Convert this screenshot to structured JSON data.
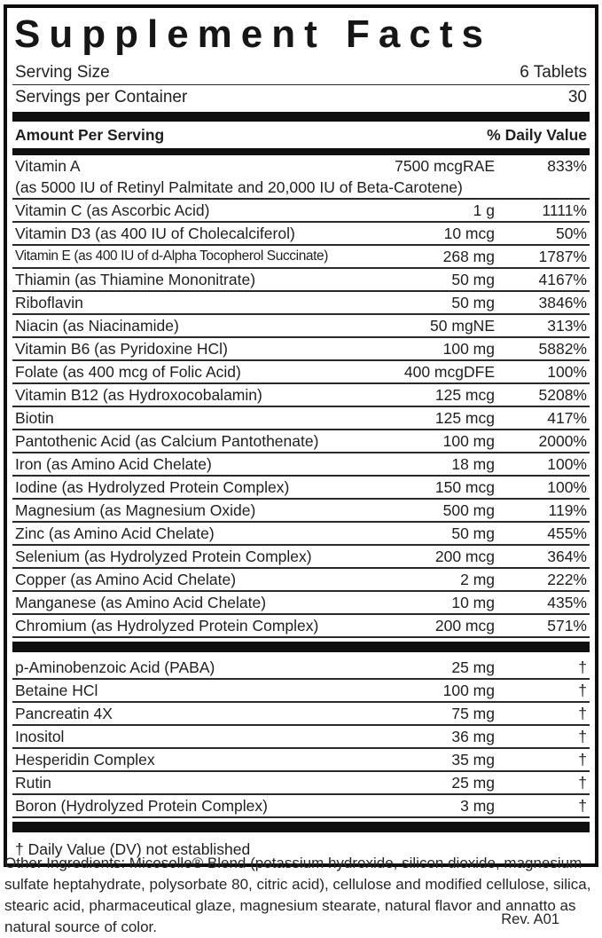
{
  "label": {
    "title": "Supplement Facts",
    "serving": {
      "size_label": "Serving Size",
      "size_value": "6 Tablets",
      "per_container_label": "Servings per Container",
      "per_container_value": "30"
    },
    "columns": {
      "amount_header": "Amount Per Serving",
      "dv_header": "% Daily Value"
    },
    "main_rows": [
      {
        "name": "Vitamin A",
        "amount": "7500 mcgRAE",
        "dv": "833%",
        "note": "(as 5000 IU of Retinyl Palmitate and 20,000 IU of Beta-Carotene)"
      },
      {
        "name": "Vitamin C (as Ascorbic Acid)",
        "amount": "1 g",
        "dv": "1111%"
      },
      {
        "name": "Vitamin D3 (as 400 IU of Cholecalciferol)",
        "amount": "10 mcg",
        "dv": "50%"
      },
      {
        "name": "Vitamin E (as 400 IU of d-Alpha Tocopherol Succinate)",
        "amount": "268 mg",
        "dv": "1787%"
      },
      {
        "name": "Thiamin (as Thiamine Mononitrate)",
        "amount": "50 mg",
        "dv": "4167%"
      },
      {
        "name": "Riboflavin",
        "amount": "50 mg",
        "dv": "3846%"
      },
      {
        "name": "Niacin (as Niacinamide)",
        "amount": "50 mgNE",
        "dv": "313%"
      },
      {
        "name": "Vitamin B6 (as Pyridoxine HCl)",
        "amount": "100 mg",
        "dv": "5882%"
      },
      {
        "name": "Folate (as 400 mcg of Folic Acid)",
        "amount": "400 mcgDFE",
        "dv": "100%"
      },
      {
        "name": "Vitamin B12 (as Hydroxocobalamin)",
        "amount": "125 mcg",
        "dv": "5208%"
      },
      {
        "name": "Biotin",
        "amount": "125 mcg",
        "dv": "417%"
      },
      {
        "name": "Pantothenic Acid (as Calcium Pantothenate)",
        "amount": "100 mg",
        "dv": "2000%"
      },
      {
        "name": "Iron (as Amino Acid Chelate)",
        "amount": "18 mg",
        "dv": "100%"
      },
      {
        "name": "Iodine (as Hydrolyzed Protein Complex)",
        "amount": "150 mcg",
        "dv": "100%"
      },
      {
        "name": "Magnesium (as Magnesium Oxide)",
        "amount": "500 mg",
        "dv": "119%"
      },
      {
        "name": "Zinc (as Amino Acid Chelate)",
        "amount": "50 mg",
        "dv": "455%"
      },
      {
        "name": "Selenium (as Hydrolyzed Protein Complex)",
        "amount": "200 mcg",
        "dv": "364%"
      },
      {
        "name": "Copper (as Amino Acid Chelate)",
        "amount": "2 mg",
        "dv": "222%"
      },
      {
        "name": "Manganese (as Amino Acid Chelate)",
        "amount": "10 mg",
        "dv": "435%"
      },
      {
        "name": "Chromium (as Hydrolyzed Protein Complex)",
        "amount": "200 mcg",
        "dv": "571%"
      }
    ],
    "other_rows": [
      {
        "name": "p-Aminobenzoic Acid (PABA)",
        "amount": "25 mg",
        "dv": "†"
      },
      {
        "name": "Betaine HCl",
        "amount": "100 mg",
        "dv": "†"
      },
      {
        "name": "Pancreatin 4X",
        "amount": "75 mg",
        "dv": "†"
      },
      {
        "name": "Inositol",
        "amount": "36 mg",
        "dv": "†"
      },
      {
        "name": "Hesperidin Complex",
        "amount": "35 mg",
        "dv": "†"
      },
      {
        "name": "Rutin",
        "amount": "25 mg",
        "dv": "†"
      },
      {
        "name": "Boron (Hydrolyzed Protein Complex)",
        "amount": "3 mg",
        "dv": "†"
      }
    ],
    "footnote": "† Daily Value (DV) not established"
  },
  "other_ingredients": "Other Ingredients: Micosolle® Blend (potassium hydroxide, silicon dioxide, magnesium sulfate heptahydrate, polysorbate 80, citric acid), cellulose and modified cellulose, silica, stearic acid, pharmaceutical glaze, magnesium stearate, natural flavor and annatto as natural source of color.",
  "revision": "Rev. A01",
  "colors": {
    "text": "#1f1f1f",
    "bar": "#0f0f0f",
    "border": "#0d0d0d"
  }
}
